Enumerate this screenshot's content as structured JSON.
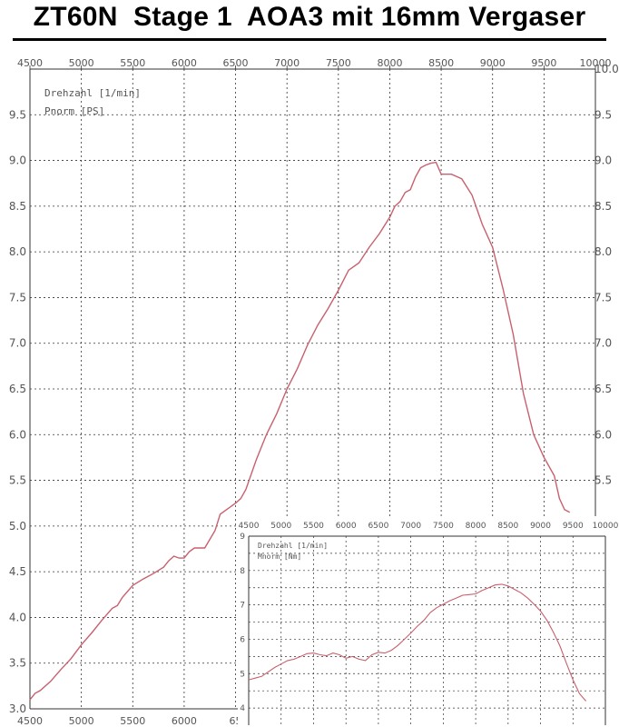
{
  "title": "ZT60N  Stage 1  AOA3 mit 16mm Vergaser",
  "colors": {
    "curve": "#c8606e",
    "grid": "#333333",
    "axis_text": "#555555",
    "background": "#ffffff"
  },
  "chart_data": [
    {
      "type": "line",
      "legend": [
        "Drehzahl [1/min]",
        "Pnorm [PS]"
      ],
      "x_ticks_top": [
        "4500",
        "5000",
        "5500",
        "6000",
        "6500",
        "7000",
        "7500",
        "8000",
        "8500",
        "9000",
        "9500",
        "10000"
      ],
      "x_ticks_bottom": [
        "4500",
        "5000",
        "5500",
        "6000",
        "65"
      ],
      "y_ticks_left": [
        "3.0",
        "3.5",
        "4.0",
        "4.5",
        "5.0",
        "5.5",
        "6.0",
        "6.5",
        "7.0",
        "7.5",
        "8.0",
        "8.5",
        "9.0",
        "9.5"
      ],
      "y_ticks_right": [
        "5.5",
        "6.0",
        "6.5",
        "7.0",
        "7.5",
        "8.0",
        "8.5",
        "9.0",
        "9.5",
        "10.0"
      ],
      "xlim": [
        4500,
        10000
      ],
      "ylim": [
        3.0,
        10.0
      ],
      "grid": true,
      "series": [
        {
          "x": [
            4500,
            4550,
            4600,
            4700,
            4800,
            4900,
            5000,
            5100,
            5200,
            5300,
            5350,
            5400,
            5500,
            5600,
            5700,
            5800,
            5850,
            5900,
            5950,
            6000,
            6050,
            6100,
            6150,
            6200,
            6300,
            6350,
            6400,
            6500,
            6550,
            6600,
            6700,
            6800,
            6900,
            7000,
            7100,
            7200,
            7300,
            7400,
            7500,
            7600,
            7700,
            7800,
            7900,
            8000,
            8050,
            8100,
            8150,
            8200,
            8250,
            8300,
            8350,
            8400,
            8450,
            8500,
            8600,
            8700,
            8800,
            8900,
            9000,
            9100,
            9200,
            9300,
            9400,
            9500,
            9600,
            9650,
            9700,
            9750
          ],
          "y": [
            3.1,
            3.17,
            3.2,
            3.3,
            3.43,
            3.55,
            3.7,
            3.83,
            3.97,
            4.1,
            4.13,
            4.22,
            4.35,
            4.42,
            4.48,
            4.55,
            4.62,
            4.67,
            4.65,
            4.65,
            4.72,
            4.76,
            4.76,
            4.76,
            4.95,
            5.13,
            5.17,
            5.25,
            5.3,
            5.4,
            5.72,
            6.0,
            6.23,
            6.5,
            6.72,
            6.98,
            7.2,
            7.38,
            7.58,
            7.8,
            7.88,
            8.05,
            8.2,
            8.38,
            8.5,
            8.55,
            8.65,
            8.68,
            8.82,
            8.92,
            8.95,
            8.97,
            8.98,
            8.85,
            8.85,
            8.8,
            8.62,
            8.3,
            8.05,
            7.6,
            7.1,
            6.45,
            6.0,
            5.75,
            5.55,
            5.3,
            5.18,
            5.15
          ]
        }
      ]
    },
    {
      "type": "line",
      "legend": [
        "Drehzahl [1/min]",
        "Mnorm [Nm]"
      ],
      "x_ticks_top": [
        "4500",
        "5000",
        "5500",
        "6000",
        "6500",
        "7000",
        "7500",
        "8000",
        "8500",
        "9000",
        "9500",
        "10000"
      ],
      "y_ticks_left": [
        "4",
        "5",
        "6",
        "7",
        "8",
        "9"
      ],
      "xlim": [
        4500,
        10000
      ],
      "ylim": [
        3.5,
        9.0
      ],
      "grid": true,
      "series": [
        {
          "x": [
            4500,
            4600,
            4700,
            4800,
            4900,
            5000,
            5100,
            5200,
            5300,
            5400,
            5500,
            5600,
            5700,
            5800,
            5900,
            6000,
            6100,
            6200,
            6300,
            6400,
            6500,
            6600,
            6700,
            6800,
            6900,
            7000,
            7100,
            7200,
            7300,
            7400,
            7500,
            7600,
            7700,
            7800,
            7900,
            8000,
            8100,
            8200,
            8300,
            8400,
            8500,
            8600,
            8700,
            8800,
            8900,
            9000,
            9100,
            9200,
            9300,
            9400,
            9500,
            9600,
            9700
          ],
          "y": [
            4.82,
            4.87,
            4.92,
            5.05,
            5.18,
            5.28,
            5.38,
            5.42,
            5.5,
            5.58,
            5.6,
            5.55,
            5.52,
            5.6,
            5.55,
            5.45,
            5.5,
            5.42,
            5.38,
            5.55,
            5.62,
            5.6,
            5.68,
            5.82,
            6.0,
            6.18,
            6.38,
            6.55,
            6.78,
            6.92,
            7.02,
            7.12,
            7.2,
            7.28,
            7.3,
            7.32,
            7.42,
            7.5,
            7.58,
            7.6,
            7.55,
            7.45,
            7.35,
            7.2,
            7.02,
            6.82,
            6.55,
            6.2,
            5.8,
            5.3,
            4.82,
            4.42,
            4.2
          ]
        }
      ]
    }
  ]
}
